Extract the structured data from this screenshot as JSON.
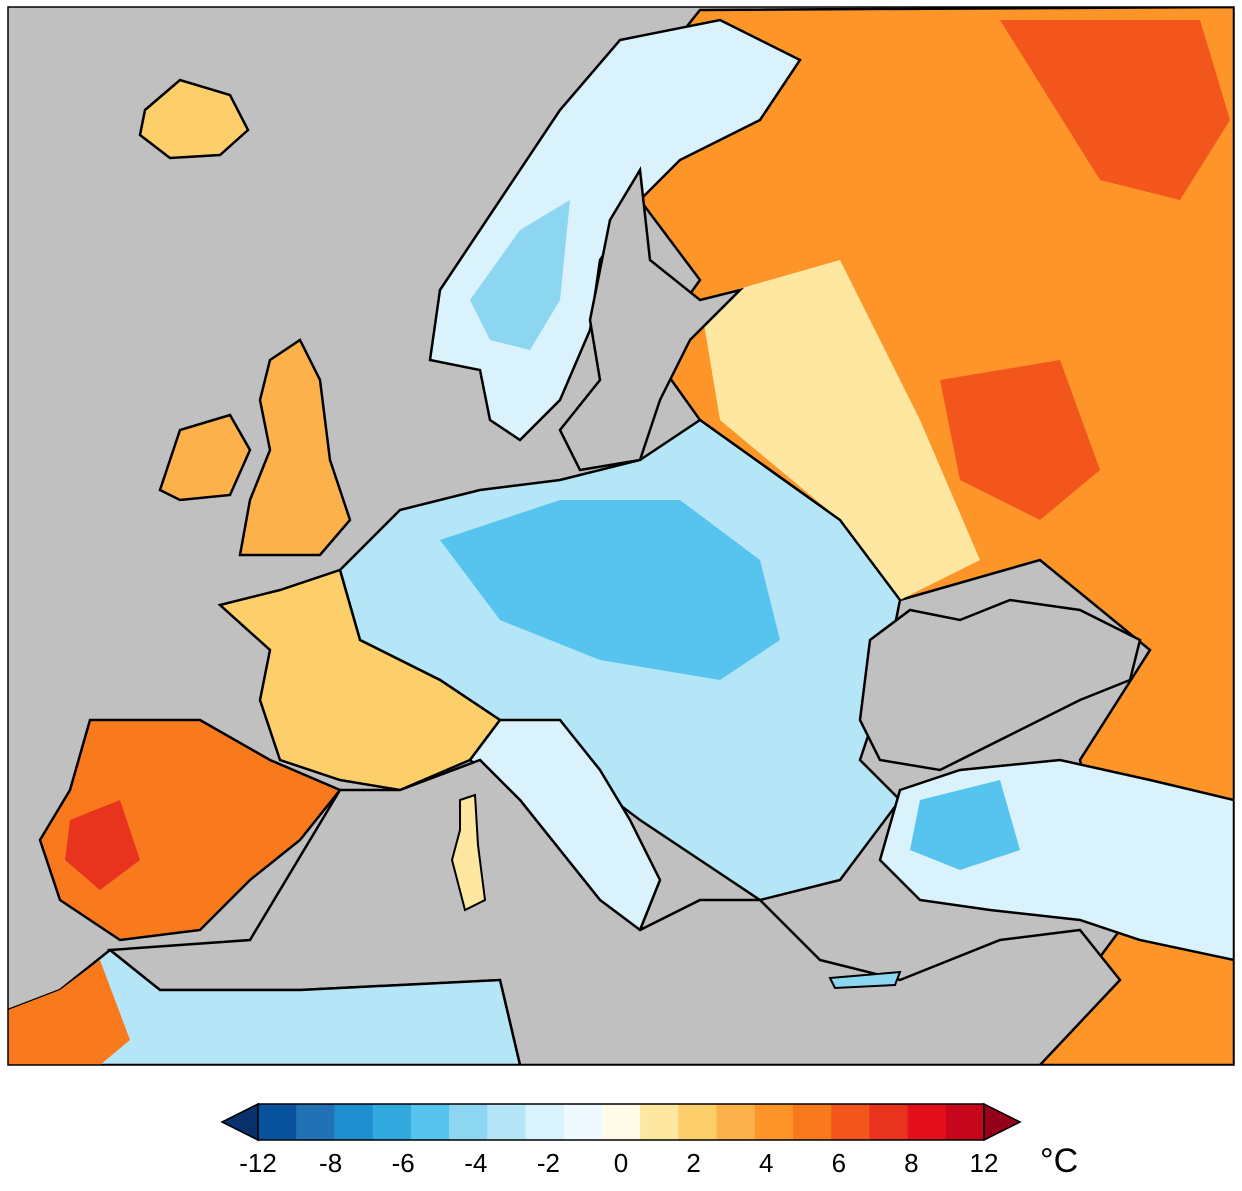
{
  "map": {
    "region": "Europe",
    "background_sea_color": "#c0c0c0",
    "coastline_color": "#000000"
  },
  "colorbar": {
    "unit": "°C",
    "tick_labels": [
      "-12",
      "-8",
      "-6",
      "-4",
      "-2",
      "0",
      "2",
      "4",
      "6",
      "8",
      "12"
    ],
    "extend": "both",
    "colors": [
      "#08306b",
      "#08519c",
      "#2171b5",
      "#1f8fcf",
      "#31a8de",
      "#56c4ee",
      "#8cd6f2",
      "#b5e6f7",
      "#d9f2fb",
      "#eefaff",
      "#fffbe8",
      "#fee7a0",
      "#fdcf6b",
      "#fdb14a",
      "#fd9528",
      "#f87a1c",
      "#f2561d",
      "#e8331e",
      "#e3101c",
      "#c5061b",
      "#96001a"
    ]
  }
}
